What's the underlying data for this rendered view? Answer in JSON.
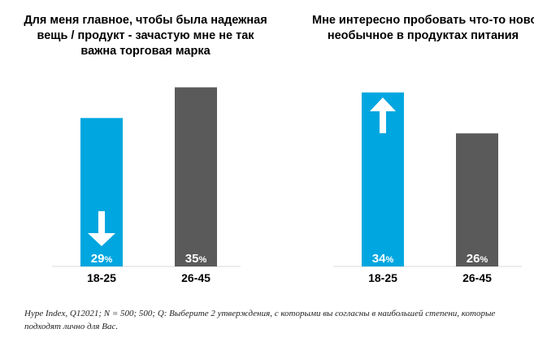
{
  "colors": {
    "young": "#00a6df",
    "older": "#5a5a5a",
    "axis": "#d9d9d9",
    "label_text": "#ffffff"
  },
  "chart_data": [
    {
      "type": "bar",
      "title": "Для меня главное, чтобы была надежная\nвещь / продукт - зачастую мне не так\nважна торговая марка",
      "categories": [
        "18-25",
        "26-45"
      ],
      "values": [
        29,
        35
      ],
      "value_labels": [
        "29%",
        "35%"
      ],
      "value_unit": "%",
      "trend_icon": {
        "category": "18-25",
        "direction": "down"
      },
      "ylim": [
        0,
        40
      ]
    },
    {
      "type": "bar",
      "title": "Мне интересно пробовать что-то новое\nнеобычное в продуктах питания",
      "categories": [
        "18-25",
        "26-45"
      ],
      "values": [
        34,
        26
      ],
      "value_labels": [
        "34%",
        "26%"
      ],
      "value_unit": "%",
      "trend_icon": {
        "category": "18-25",
        "direction": "up"
      },
      "ylim": [
        0,
        40
      ]
    }
  ],
  "footnote": "Hype Index, Q12021; N = 500; 500; Q: Выберите 2 утверждения, с которыми вы согласны в наибольшей степени, которые подходят лично для Вас."
}
